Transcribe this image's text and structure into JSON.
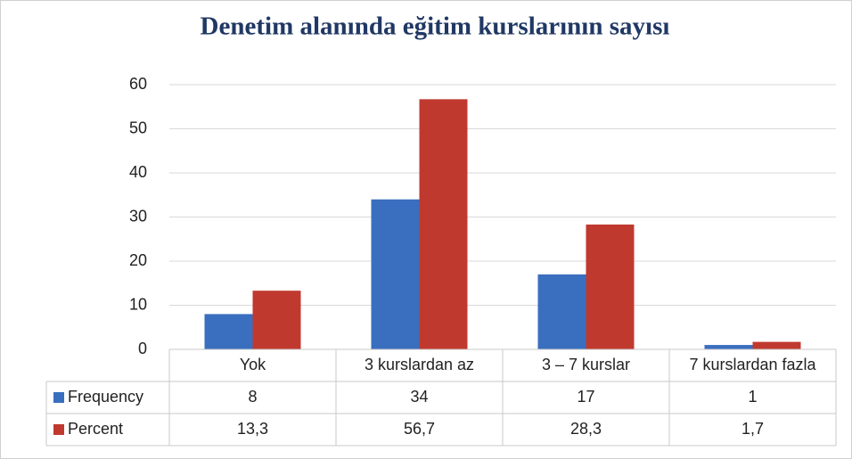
{
  "chart_data": {
    "type": "bar",
    "title": "Denetim alanında eğitim kurslarının sayısı",
    "categories": [
      "Yok",
      "3 kurslardan az",
      "3 – 7 kurslar",
      "7 kurslardan fazla"
    ],
    "series": [
      {
        "name": "Frequency",
        "color": "#3a6fbf",
        "values": [
          8,
          34,
          17,
          1
        ]
      },
      {
        "name": "Percent",
        "color": "#c0392f",
        "values": [
          13.3,
          56.7,
          28.3,
          1.7
        ],
        "value_labels": [
          "13,3",
          "56,7",
          "28,3",
          "1,7"
        ]
      }
    ],
    "ylim": [
      0,
      60
    ],
    "yticks": [
      0,
      10,
      20,
      30,
      40,
      50,
      60
    ],
    "grid": true,
    "data_table": true
  }
}
